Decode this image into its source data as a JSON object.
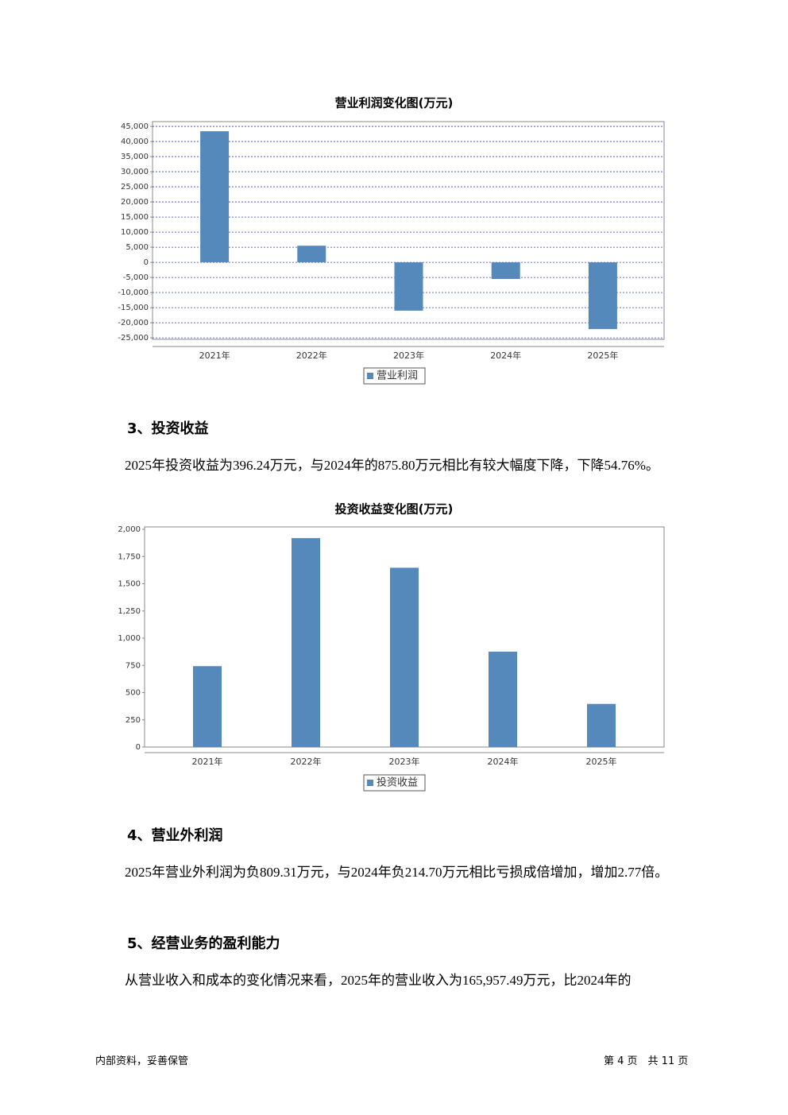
{
  "chart_data": [
    {
      "type": "bar",
      "title": "营业利润变化图(万元)",
      "categories": [
        "2021年",
        "2022年",
        "2023年",
        "2024年",
        "2025年"
      ],
      "series": [
        {
          "name": "营业利润",
          "color": "#5588bb",
          "values": [
            43400,
            5500,
            -16000,
            -5500,
            -22100
          ]
        }
      ],
      "ylim": [
        -25500,
        46600
      ],
      "yticks": [
        {
          "value": 45000,
          "label": "45,000"
        },
        {
          "value": 40000,
          "label": "40,000"
        },
        {
          "value": 35000,
          "label": "35,000"
        },
        {
          "value": 30000,
          "label": "30,000"
        },
        {
          "value": 25000,
          "label": "25,000"
        },
        {
          "value": 20000,
          "label": "20,000"
        },
        {
          "value": 15000,
          "label": "15,000"
        },
        {
          "value": 10000,
          "label": "10,000"
        },
        {
          "value": 5000,
          "label": "5,000"
        },
        0,
        {
          "value": -5000,
          "label": "-5,000"
        },
        {
          "value": -10000,
          "label": "-10,000"
        },
        {
          "value": -15000,
          "label": "-15,000"
        },
        {
          "value": -20000,
          "label": "-20,000"
        },
        {
          "value": -25000,
          "label": "-25,000"
        }
      ],
      "grid": true
    },
    {
      "type": "bar",
      "title": "投资收益变化图(万元)",
      "categories": [
        "2021年",
        "2022年",
        "2023年",
        "2024年",
        "2025年"
      ],
      "series": [
        {
          "name": "投资收益",
          "color": "#5588bb",
          "values": [
            743,
            1919,
            1647,
            875.8,
            396.24
          ]
        }
      ],
      "ylim": [
        0,
        2022
      ],
      "yticks": [
        {
          "value": 2000,
          "label": "2,000"
        },
        {
          "value": 1750,
          "label": "1,750"
        },
        {
          "value": 1500,
          "label": "1,500"
        },
        {
          "value": 1250,
          "label": "1,250"
        },
        {
          "value": 1000,
          "label": "1,000"
        },
        750,
        500,
        250,
        0
      ],
      "grid": false
    }
  ],
  "sections": [
    {
      "heading": "3、投资收益",
      "paragraph": "2025年投资收益为396.24万元，与2024年的875.80万元相比有较大幅度下降，下降54.76%。"
    },
    {
      "heading": "4、营业外利润",
      "paragraph": "2025年营业外利润为负809.31万元，与2024年负214.70万元相比亏损成倍增加，增加2.77倍。"
    },
    {
      "heading": "5、经营业务的盈利能力",
      "paragraph": "从营业收入和成本的变化情况来看，2025年的营业收入为165,957.49万元，比2024年的"
    }
  ],
  "footer": {
    "left": "内部资料，妥善保管",
    "right": "第 4 页　共 11 页"
  }
}
